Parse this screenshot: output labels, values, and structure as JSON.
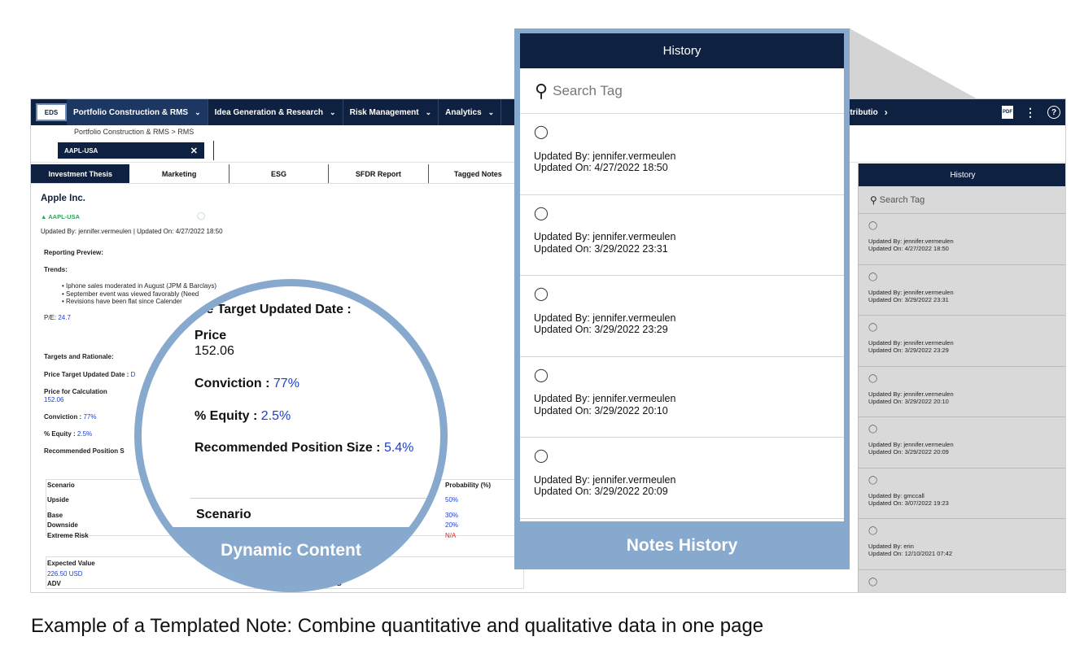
{
  "app": {
    "logo": "EDS",
    "nav": [
      {
        "label": "Portfolio Construction & RMS"
      },
      {
        "label": "Idea Generation & Research"
      },
      {
        "label": "Risk Management"
      },
      {
        "label": "Analytics"
      }
    ],
    "nav_tail": "ttributio",
    "breadcrumb": "Portfolio Construction & RMS > RMS",
    "ticker": "AAPL-USA",
    "tabs": [
      "Investment Thesis",
      "Marketing",
      "ESG",
      "SFDR Report",
      "Tagged Notes"
    ],
    "company": "Apple Inc.",
    "ticker_green": "AAPL-USA",
    "updated_line": "Updated By: jennifer.vermeulen | Updated On: 4/27/2022 18:50",
    "reporting_preview": "Reporting Preview:",
    "trends_label": "Trends:",
    "trends": [
      "Iphone sales moderated in August (JPM & Barclays)",
      "September event was viewed favorably (Need",
      "Revisions have been flat since Calender"
    ],
    "pe_label": "P/E:",
    "pe_value": "24.7",
    "targets_label": "Targets and Rationale:",
    "pt_label": "Price Target Updated Date :",
    "pt_value": "D",
    "price_calc_label": "Price for Calculation",
    "price_calc_value": "152.06",
    "conviction_label": "Conviction :",
    "conviction_value": "77%",
    "equity_label": "% Equity :",
    "equity_value": "2.5%",
    "rec_label": "Recommended Position S",
    "scenario_header": "Scenario",
    "prob_header": "Probability (%)",
    "scenarios": [
      {
        "name": "Upside",
        "prob": "50%"
      },
      {
        "name": "Base",
        "prob": "30%"
      },
      {
        "name": "Downside",
        "prob": "20%"
      },
      {
        "name": "Extreme Risk",
        "prob": "N/A"
      }
    ],
    "expected_label": "Expected Value",
    "expected_value": "226.50 USD",
    "adv_label": "ADV",
    "adv_tail": "USD"
  },
  "small_history": {
    "title": "History",
    "search_placeholder": "Search Tag",
    "items": [
      {
        "by": "Updated By: jennifer.vermeulen",
        "on": "Updated On: 4/27/2022 18:50"
      },
      {
        "by": "Updated By: jennifer.vermeulen",
        "on": "Updated On: 3/29/2022 23:31"
      },
      {
        "by": "Updated By: jennifer.vermeulen",
        "on": "Updated On: 3/29/2022 23:29"
      },
      {
        "by": "Updated By: jennifer.vermeulen",
        "on": "Updated On: 3/29/2022 20:10"
      },
      {
        "by": "Updated By: jennifer.vermeulen",
        "on": "Updated On: 3/29/2022 20:09"
      },
      {
        "by": "Updated By: gmccall",
        "on": "Updated On: 3/07/2022 19:23"
      },
      {
        "by": "Updated By: erin",
        "on": "Updated On: 12/10/2021 07:42"
      }
    ]
  },
  "big_history": {
    "title": "History",
    "search_placeholder": "Search Tag",
    "items": [
      {
        "by": "Updated By: jennifer.vermeulen",
        "on": "Updated On: 4/27/2022 18:50"
      },
      {
        "by": "Updated By: jennifer.vermeulen",
        "on": "Updated On: 3/29/2022 23:31"
      },
      {
        "by": "Updated By: jennifer.vermeulen",
        "on": "Updated On: 3/29/2022 23:29"
      },
      {
        "by": "Updated By: jennifer.vermeulen",
        "on": "Updated On: 3/29/2022 20:10"
      },
      {
        "by": "Updated By: jennifer.vermeulen",
        "on": "Updated On: 3/29/2022 20:09"
      }
    ],
    "footer": "Notes History"
  },
  "zoom": {
    "heading": "ice Target Updated Date :",
    "price_label": "Price",
    "price_value": "152.06",
    "conviction_label": "Conviction :",
    "conviction_value": "77%",
    "equity_label": "% Equity :",
    "equity_value": "2.5%",
    "rec_label": "Recommended Position Size :",
    "rec_value": "5.4%",
    "scenario": "Scenario",
    "footer": "Dynamic Content"
  },
  "caption": "Example of a Templated Note: Combine quantitative and qualitative data in one page",
  "colors": {
    "navy": "#0f2140",
    "accent_blue": "#87a9cd",
    "value_blue": "#1a3ed6",
    "green": "#2aa85a",
    "red": "#d62828"
  }
}
